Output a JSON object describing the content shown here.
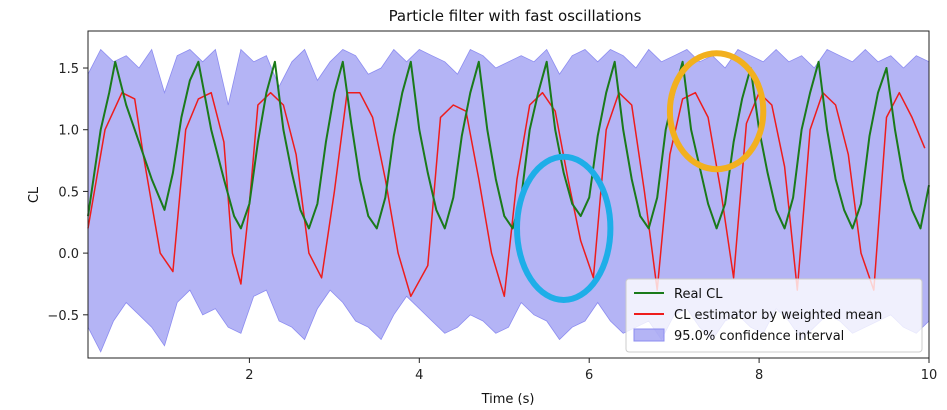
{
  "chart_data": {
    "type": "line",
    "title": "Particle filter with fast oscillations",
    "xlabel": "Time (s)",
    "ylabel": "CL",
    "xlim": [
      0.1,
      10.0
    ],
    "ylim": [
      -0.85,
      1.8
    ],
    "xticks": [
      2,
      4,
      6,
      8,
      10
    ],
    "yticks": [
      -0.5,
      0.0,
      0.5,
      1.0,
      1.5
    ],
    "grid": false,
    "legend_position": "lower-right",
    "colors": {
      "real": "#1a7a1a",
      "estimator": "#ee1c1c",
      "band": "#8c8cf0",
      "highlight_orange": "#f2b01e",
      "highlight_blue": "#1eaee8"
    },
    "series": [
      {
        "name": "Real CL",
        "type": "line",
        "x": [
          0.1,
          0.25,
          0.35,
          0.42,
          0.55,
          0.7,
          0.85,
          1.0,
          1.1,
          1.2,
          1.3,
          1.4,
          1.55,
          1.7,
          1.82,
          1.9,
          2.0,
          2.1,
          2.2,
          2.3,
          2.4,
          2.5,
          2.6,
          2.7,
          2.8,
          2.9,
          3.0,
          3.1,
          3.2,
          3.3,
          3.4,
          3.5,
          3.6,
          3.7,
          3.8,
          3.9,
          4.0,
          4.1,
          4.2,
          4.3,
          4.4,
          4.5,
          4.6,
          4.7,
          4.8,
          4.9,
          5.0,
          5.1,
          5.2,
          5.3,
          5.4,
          5.5,
          5.6,
          5.7,
          5.8,
          5.9,
          6.0,
          6.1,
          6.2,
          6.3,
          6.4,
          6.5,
          6.6,
          6.7,
          6.8,
          6.9,
          7.0,
          7.1,
          7.2,
          7.3,
          7.4,
          7.5,
          7.6,
          7.7,
          7.8,
          7.9,
          8.0,
          8.1,
          8.2,
          8.3,
          8.4,
          8.5,
          8.6,
          8.7,
          8.8,
          8.9,
          9.0,
          9.1,
          9.2,
          9.3,
          9.4,
          9.5,
          9.6,
          9.7,
          9.8,
          9.9,
          10.0
        ],
        "y": [
          0.3,
          1.0,
          1.3,
          1.55,
          1.2,
          0.9,
          0.6,
          0.35,
          0.65,
          1.1,
          1.4,
          1.55,
          1.0,
          0.6,
          0.3,
          0.2,
          0.4,
          0.9,
          1.3,
          1.55,
          1.0,
          0.65,
          0.35,
          0.2,
          0.4,
          0.9,
          1.3,
          1.55,
          1.05,
          0.6,
          0.3,
          0.2,
          0.45,
          0.95,
          1.3,
          1.55,
          1.0,
          0.65,
          0.35,
          0.2,
          0.45,
          0.95,
          1.3,
          1.55,
          1.0,
          0.6,
          0.3,
          0.2,
          0.45,
          1.0,
          1.3,
          1.55,
          1.0,
          0.65,
          0.4,
          0.3,
          0.45,
          0.95,
          1.3,
          1.55,
          1.0,
          0.6,
          0.3,
          0.2,
          0.45,
          1.0,
          1.3,
          1.55,
          1.0,
          0.7,
          0.4,
          0.2,
          0.4,
          0.9,
          1.25,
          1.5,
          1.0,
          0.65,
          0.35,
          0.2,
          0.45,
          1.0,
          1.3,
          1.55,
          1.0,
          0.6,
          0.35,
          0.2,
          0.4,
          0.95,
          1.3,
          1.5,
          1.0,
          0.6,
          0.35,
          0.2,
          0.55
        ]
      },
      {
        "name": "CL estimator by weighted mean",
        "type": "line",
        "x": [
          0.1,
          0.3,
          0.5,
          0.65,
          0.75,
          0.85,
          0.95,
          1.1,
          1.25,
          1.4,
          1.55,
          1.7,
          1.8,
          1.9,
          2.0,
          2.1,
          2.25,
          2.4,
          2.55,
          2.7,
          2.85,
          3.0,
          3.15,
          3.3,
          3.45,
          3.6,
          3.75,
          3.9,
          4.1,
          4.25,
          4.4,
          4.55,
          4.7,
          4.85,
          5.0,
          5.15,
          5.3,
          5.45,
          5.6,
          5.75,
          5.9,
          6.05,
          6.2,
          6.35,
          6.5,
          6.65,
          6.8,
          6.95,
          7.1,
          7.25,
          7.4,
          7.55,
          7.7,
          7.85,
          8.0,
          8.15,
          8.3,
          8.45,
          8.6,
          8.75,
          8.9,
          9.05,
          9.2,
          9.35,
          9.5,
          9.65,
          9.8,
          9.95
        ],
        "y": [
          0.2,
          1.0,
          1.3,
          1.25,
          0.8,
          0.4,
          0.0,
          -0.15,
          1.0,
          1.25,
          1.3,
          0.9,
          0.0,
          -0.25,
          0.4,
          1.2,
          1.3,
          1.2,
          0.8,
          0.0,
          -0.2,
          0.5,
          1.3,
          1.3,
          1.1,
          0.6,
          0.0,
          -0.35,
          -0.1,
          1.1,
          1.2,
          1.15,
          0.6,
          0.0,
          -0.35,
          0.6,
          1.2,
          1.3,
          1.15,
          0.6,
          0.1,
          -0.2,
          1.0,
          1.3,
          1.2,
          0.5,
          -0.3,
          0.8,
          1.25,
          1.3,
          1.1,
          0.5,
          -0.2,
          1.05,
          1.3,
          1.2,
          0.7,
          -0.3,
          1.0,
          1.3,
          1.2,
          0.8,
          0.0,
          -0.3,
          1.1,
          1.3,
          1.1,
          0.85
        ]
      },
      {
        "name": "95.0% confidence interval",
        "type": "area",
        "x": [
          0.1,
          0.25,
          0.4,
          0.55,
          0.7,
          0.85,
          1.0,
          1.15,
          1.3,
          1.45,
          1.6,
          1.75,
          1.9,
          2.05,
          2.2,
          2.35,
          2.5,
          2.65,
          2.8,
          2.95,
          3.1,
          3.25,
          3.4,
          3.55,
          3.7,
          3.85,
          4.0,
          4.15,
          4.3,
          4.45,
          4.6,
          4.75,
          4.9,
          5.05,
          5.2,
          5.35,
          5.5,
          5.65,
          5.8,
          5.95,
          6.1,
          6.25,
          6.4,
          6.55,
          6.7,
          6.85,
          7.0,
          7.15,
          7.3,
          7.45,
          7.6,
          7.75,
          7.9,
          8.05,
          8.2,
          8.35,
          8.5,
          8.65,
          8.8,
          8.95,
          9.1,
          9.25,
          9.4,
          9.55,
          9.7,
          9.85,
          10.0
        ],
        "lower": [
          -0.6,
          -0.8,
          -0.55,
          -0.4,
          -0.5,
          -0.6,
          -0.75,
          -0.4,
          -0.3,
          -0.5,
          -0.45,
          -0.6,
          -0.65,
          -0.35,
          -0.3,
          -0.55,
          -0.6,
          -0.7,
          -0.45,
          -0.3,
          -0.4,
          -0.55,
          -0.6,
          -0.7,
          -0.5,
          -0.35,
          -0.45,
          -0.55,
          -0.65,
          -0.6,
          -0.5,
          -0.55,
          -0.65,
          -0.6,
          -0.4,
          -0.5,
          -0.55,
          -0.7,
          -0.6,
          -0.55,
          -0.4,
          -0.55,
          -0.65,
          -0.6,
          -0.55,
          -0.7,
          -0.5,
          -0.45,
          -0.6,
          -0.7,
          -0.55,
          -0.5,
          -0.6,
          -0.65,
          -0.45,
          -0.55,
          -0.7,
          -0.6,
          -0.5,
          -0.55,
          -0.65,
          -0.6,
          -0.55,
          -0.5,
          -0.6,
          -0.65,
          -0.55
        ],
        "upper": [
          1.45,
          1.65,
          1.55,
          1.6,
          1.5,
          1.65,
          1.3,
          1.6,
          1.65,
          1.55,
          1.65,
          1.2,
          1.65,
          1.55,
          1.6,
          1.35,
          1.55,
          1.65,
          1.4,
          1.55,
          1.65,
          1.6,
          1.45,
          1.5,
          1.65,
          1.55,
          1.65,
          1.6,
          1.55,
          1.45,
          1.65,
          1.6,
          1.5,
          1.55,
          1.6,
          1.55,
          1.65,
          1.45,
          1.6,
          1.65,
          1.55,
          1.65,
          1.6,
          1.5,
          1.65,
          1.55,
          1.6,
          1.65,
          1.55,
          1.6,
          1.5,
          1.65,
          1.6,
          1.55,
          1.65,
          1.55,
          1.6,
          1.5,
          1.65,
          1.6,
          1.55,
          1.65,
          1.55,
          1.6,
          1.5,
          1.6,
          1.55
        ]
      }
    ],
    "legend": [
      {
        "label": "Real CL",
        "swatch": "line",
        "color": "#1a7a1a"
      },
      {
        "label": "CL estimator by weighted mean",
        "swatch": "line",
        "color": "#ee1c1c"
      },
      {
        "label": "95.0% confidence interval",
        "swatch": "patch",
        "color": "#8c8cf0"
      }
    ],
    "annotations": [
      {
        "shape": "ellipse",
        "color": "#f2b01e",
        "center": [
          7.5,
          1.15
        ],
        "radius_data": [
          0.55,
          0.47
        ]
      },
      {
        "shape": "ellipse",
        "color": "#1eaee8",
        "center": [
          5.7,
          0.2
        ],
        "radius_data": [
          0.55,
          0.58
        ]
      }
    ]
  }
}
